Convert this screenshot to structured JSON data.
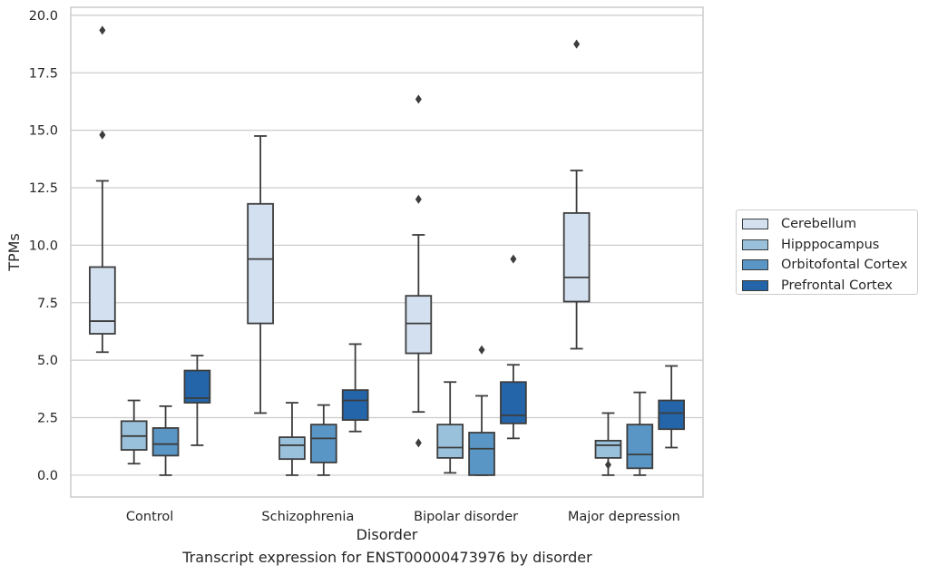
{
  "chart_data": {
    "type": "box",
    "xlabel": "Disorder",
    "ylabel": "TPMs",
    "ylim": [
      -0.95,
      20.35
    ],
    "yticks": [
      "0.0",
      "2.5",
      "5.0",
      "7.5",
      "10.0",
      "12.5",
      "15.0",
      "17.5",
      "20.0"
    ],
    "grid": "horizontal",
    "legend_position": "right",
    "categories": [
      "Control",
      "Schizophrenia",
      "Bipolar disorder",
      "Major depression"
    ],
    "series": [
      {
        "name": "Cerebellum",
        "color": "#d2e0f0",
        "boxes": [
          {
            "min": 5.35,
            "q1": 6.15,
            "median": 6.7,
            "q3": 9.05,
            "max": 12.8,
            "outliers": [
              14.8,
              19.35
            ]
          },
          {
            "min": 2.7,
            "q1": 6.6,
            "median": 9.4,
            "q3": 11.8,
            "max": 14.75,
            "outliers": []
          },
          {
            "min": 2.75,
            "q1": 5.3,
            "median": 6.6,
            "q3": 7.8,
            "max": 10.45,
            "outliers": [
              1.4,
              12.0,
              16.35
            ]
          },
          {
            "min": 5.5,
            "q1": 7.55,
            "median": 8.6,
            "q3": 11.4,
            "max": 13.25,
            "outliers": [
              18.75
            ]
          }
        ]
      },
      {
        "name": "Hipppocampus",
        "color": "#9ac1dc",
        "boxes": [
          {
            "min": 0.5,
            "q1": 1.1,
            "median": 1.7,
            "q3": 2.35,
            "max": 3.25,
            "outliers": []
          },
          {
            "min": 0.0,
            "q1": 0.7,
            "median": 1.3,
            "q3": 1.65,
            "max": 3.15,
            "outliers": []
          },
          {
            "min": 0.1,
            "q1": 0.75,
            "median": 1.2,
            "q3": 2.2,
            "max": 4.05,
            "outliers": []
          },
          {
            "min": 0.0,
            "q1": 0.75,
            "median": 1.3,
            "q3": 1.5,
            "max": 2.7,
            "outliers": [
              0.45
            ]
          }
        ]
      },
      {
        "name": "Orbitofontal Cortex",
        "color": "#5995c5",
        "boxes": [
          {
            "min": 0.0,
            "q1": 0.85,
            "median": 1.35,
            "q3": 2.05,
            "max": 3.0,
            "outliers": []
          },
          {
            "min": 0.0,
            "q1": 0.55,
            "median": 1.6,
            "q3": 2.2,
            "max": 3.05,
            "outliers": []
          },
          {
            "min": 0.0,
            "q1": 0.0,
            "median": 1.15,
            "q3": 1.85,
            "max": 3.45,
            "outliers": [
              5.45
            ]
          },
          {
            "min": 0.0,
            "q1": 0.3,
            "median": 0.9,
            "q3": 2.2,
            "max": 3.6,
            "outliers": []
          }
        ]
      },
      {
        "name": "Prefrontal Cortex",
        "color": "#2464a8",
        "boxes": [
          {
            "min": 1.3,
            "q1": 3.15,
            "median": 3.35,
            "q3": 4.55,
            "max": 5.2,
            "outliers": []
          },
          {
            "min": 1.9,
            "q1": 2.4,
            "median": 3.25,
            "q3": 3.7,
            "max": 5.7,
            "outliers": []
          },
          {
            "min": 1.6,
            "q1": 2.25,
            "median": 2.6,
            "q3": 4.05,
            "max": 4.8,
            "outliers": [
              9.4
            ]
          },
          {
            "min": 1.2,
            "q1": 2.0,
            "median": 2.7,
            "q3": 3.25,
            "max": 4.75,
            "outliers": []
          }
        ]
      }
    ]
  },
  "caption": "Transcript expression for ENST00000473976 by disorder"
}
